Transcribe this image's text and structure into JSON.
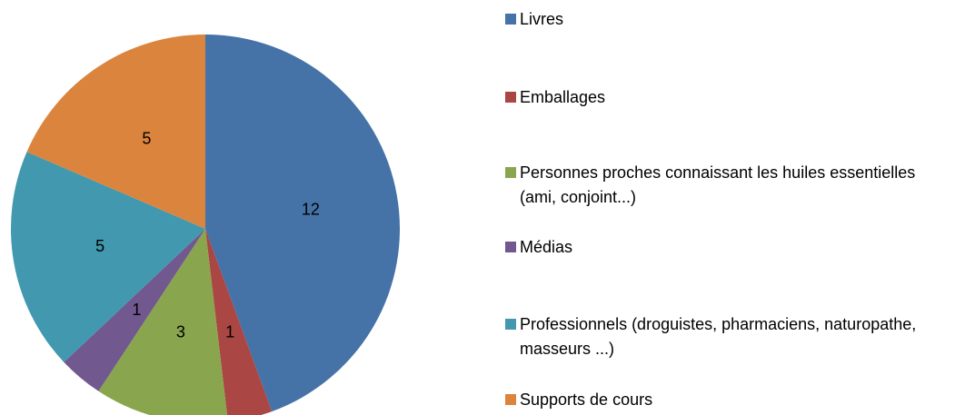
{
  "chart_data": {
    "type": "pie",
    "categories": [
      "Livres",
      "Emballages",
      "Personnes proches connaissant les huiles essentielles (ami, conjoint...)",
      "Médias",
      "Professionnels (droguistes, pharmaciens, naturopathe, masseurs ...)",
      "Supports de cours"
    ],
    "values": [
      12,
      1,
      3,
      1,
      5,
      5
    ],
    "colors": [
      "#4572a7",
      "#aa4643",
      "#89a54e",
      "#71588f",
      "#4198af",
      "#db843d"
    ],
    "legend": "right"
  }
}
